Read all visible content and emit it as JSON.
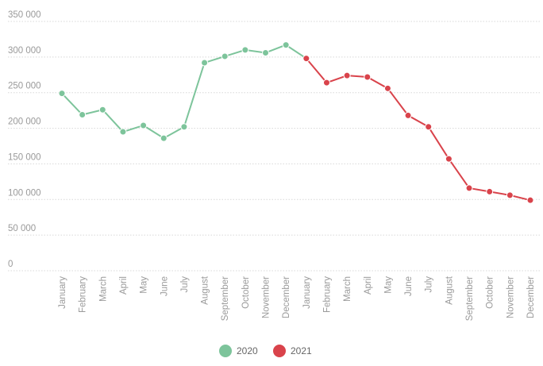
{
  "chart_data": {
    "type": "line",
    "categories": [
      "January",
      "February",
      "March",
      "April",
      "May",
      "June",
      "July",
      "August",
      "September",
      "October",
      "November",
      "December",
      "January",
      "February",
      "March",
      "April",
      "May",
      "June",
      "July",
      "August",
      "September",
      "October",
      "November",
      "December"
    ],
    "series": [
      {
        "name": "2020",
        "color": "#7dc49b",
        "values": [
          249000,
          219000,
          226000,
          195000,
          204000,
          186000,
          202000,
          292000,
          301000,
          310000,
          306000,
          317000,
          null,
          null,
          null,
          null,
          null,
          null,
          null,
          null,
          null,
          null,
          null,
          null
        ]
      },
      {
        "name": "2021",
        "color": "#d9434b",
        "values": [
          null,
          null,
          null,
          null,
          null,
          null,
          null,
          null,
          null,
          null,
          null,
          null,
          298000,
          264000,
          274000,
          272000,
          256000,
          218000,
          202000,
          157000,
          116000,
          111000,
          106000,
          99000
        ]
      }
    ],
    "ylim": [
      0,
      350000
    ],
    "yticks": [
      0,
      {
        "value": 50000,
        "label": "50 000"
      },
      {
        "value": 100000,
        "label": "100 000"
      },
      {
        "value": 150000,
        "label": "150 000"
      },
      {
        "value": 200000,
        "label": "200 000"
      },
      {
        "value": 250000,
        "label": "250 000"
      },
      {
        "value": 300000,
        "label": "300 000"
      },
      {
        "value": 350000,
        "label": "350 000"
      }
    ],
    "grid": true,
    "legend": "bottom"
  }
}
